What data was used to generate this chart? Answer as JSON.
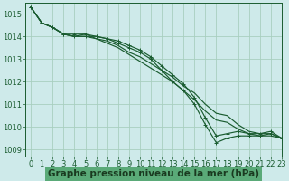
{
  "bg_color": "#ceeaea",
  "grid_color": "#a8cfc0",
  "line_color": "#1a5c30",
  "xlabel": "Graphe pression niveau de la mer (hPa)",
  "xlabel_color": "#1a3a20",
  "xlabel_bg": "#5aaa78",
  "ylim": [
    1008.7,
    1015.5
  ],
  "xlim": [
    -0.5,
    23
  ],
  "yticks": [
    1009,
    1010,
    1011,
    1012,
    1013,
    1014,
    1015
  ],
  "xticks": [
    0,
    1,
    2,
    3,
    4,
    5,
    6,
    7,
    8,
    9,
    10,
    11,
    12,
    13,
    14,
    15,
    16,
    17,
    18,
    19,
    20,
    21,
    22,
    23
  ],
  "series": [
    {
      "y": [
        1015.3,
        1014.6,
        1014.4,
        1014.1,
        1014.0,
        1014.1,
        1013.9,
        1013.8,
        1013.6,
        1013.3,
        1013.1,
        1012.8,
        1012.5,
        1012.2,
        1011.8,
        1011.5,
        1011.0,
        1010.6,
        1010.5,
        1010.1,
        1009.8,
        1009.7,
        1009.7,
        1009.5
      ],
      "marker": false
    },
    {
      "y": [
        1015.3,
        1014.6,
        1014.4,
        1014.1,
        1014.0,
        1014.0,
        1013.9,
        1013.7,
        1013.5,
        1013.2,
        1012.9,
        1012.6,
        1012.3,
        1012.0,
        1011.6,
        1011.2,
        1010.7,
        1010.3,
        1010.2,
        1009.9,
        1009.7,
        1009.6,
        1009.6,
        1009.5
      ],
      "marker": false
    },
    {
      "y": [
        1015.3,
        1014.6,
        1014.4,
        1014.1,
        1014.0,
        1014.0,
        1014.0,
        1013.9,
        1013.7,
        1013.5,
        1013.3,
        1013.0,
        1012.5,
        1012.0,
        1011.6,
        1011.0,
        1010.1,
        1009.3,
        1009.5,
        1009.6,
        1009.6,
        1009.6,
        1009.7,
        1009.5
      ],
      "marker": true
    },
    {
      "y": [
        1015.3,
        1014.6,
        1014.4,
        1014.1,
        1014.1,
        1014.1,
        1014.0,
        1013.9,
        1013.8,
        1013.6,
        1013.4,
        1013.1,
        1012.7,
        1012.3,
        1011.9,
        1011.3,
        1010.4,
        1009.6,
        1009.7,
        1009.8,
        1009.7,
        1009.7,
        1009.8,
        1009.5
      ],
      "marker": true
    }
  ],
  "tick_fontsize": 6.0,
  "xlabel_fontsize": 7.5,
  "linewidth": 0.85,
  "markersize": 3.0,
  "markeredgewidth": 0.7
}
